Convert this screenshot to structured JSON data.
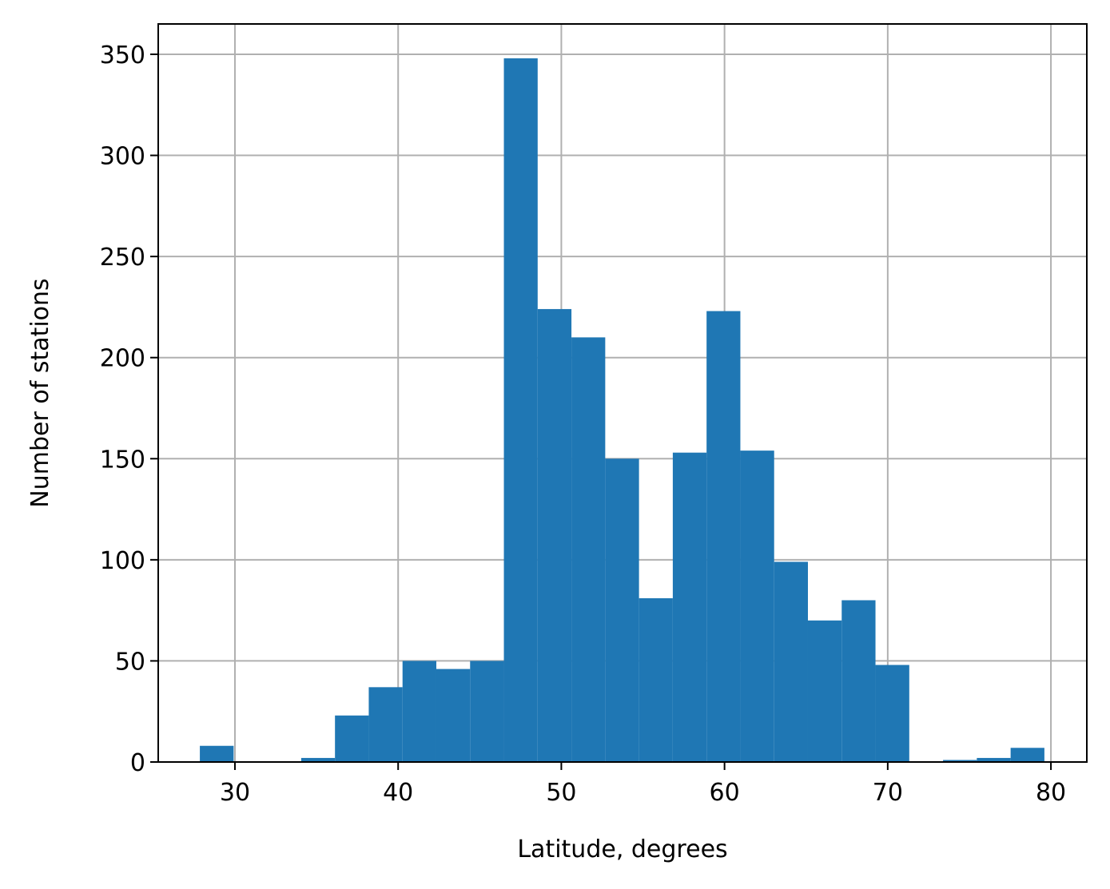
{
  "chart_data": {
    "type": "bar",
    "histogram": true,
    "xlabel": "Latitude, degrees",
    "ylabel": "Number of stations",
    "xlim": [
      25.3,
      82.2
    ],
    "ylim": [
      0,
      365
    ],
    "x_ticks": [
      30,
      40,
      50,
      60,
      70,
      80
    ],
    "y_ticks": [
      0,
      50,
      100,
      150,
      200,
      250,
      300,
      350
    ],
    "grid": true,
    "bar_color": "#1f77b4",
    "bins": {
      "start": 27.85,
      "width": 2.07,
      "counts": [
        8,
        0,
        0,
        2,
        23,
        37,
        50,
        46,
        50,
        348,
        224,
        210,
        150,
        81,
        153,
        223,
        154,
        99,
        70,
        80,
        48,
        0,
        1,
        2,
        7
      ]
    }
  }
}
